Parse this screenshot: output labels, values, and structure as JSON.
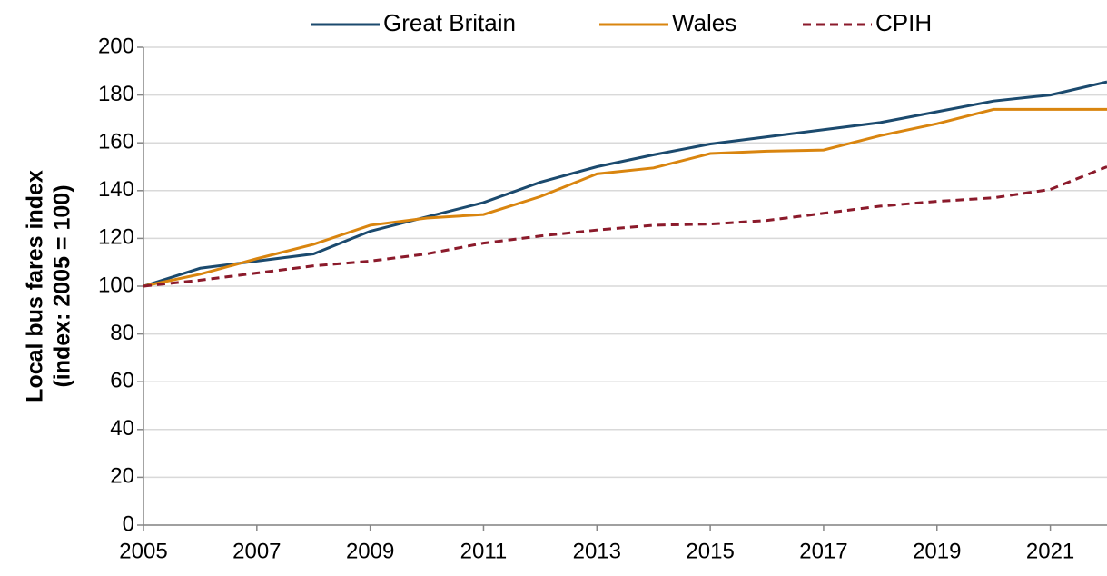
{
  "chart_data": {
    "type": "line",
    "y_label": [
      "Local bus fares index",
      "(index: 2005 = 100)"
    ],
    "x": [
      2005,
      2006,
      2007,
      2008,
      2009,
      2010,
      2011,
      2012,
      2013,
      2014,
      2015,
      2016,
      2017,
      2018,
      2019,
      2020,
      2021,
      2022
    ],
    "series": [
      {
        "name": "Great Britain",
        "color": "#1b4a6e",
        "dashed": false,
        "values": [
          100,
          107.5,
          110.5,
          113.5,
          123,
          129,
          135,
          143.5,
          150,
          155,
          159.5,
          162.5,
          165.5,
          168.5,
          173,
          177.5,
          180,
          185.5
        ]
      },
      {
        "name": "Wales",
        "color": "#d9850f",
        "dashed": false,
        "values": [
          100,
          105,
          111.5,
          117.5,
          125.5,
          128.5,
          130,
          137.5,
          147,
          149.5,
          155.5,
          156.5,
          157,
          163,
          168,
          174,
          174,
          174
        ]
      },
      {
        "name": "CPIH",
        "color": "#8b1a2b",
        "dashed": true,
        "values": [
          100,
          102.5,
          105.5,
          108.5,
          110.5,
          113.5,
          118,
          121,
          123.5,
          125.5,
          126,
          127.5,
          130.5,
          133.5,
          135.5,
          137,
          140.5,
          150
        ]
      }
    ],
    "xlim": [
      2005,
      2022
    ],
    "xticks": [
      2005,
      2007,
      2009,
      2011,
      2013,
      2015,
      2017,
      2019,
      2021
    ],
    "ylim": [
      0,
      200
    ],
    "yticks": [
      0,
      20,
      40,
      60,
      80,
      100,
      120,
      140,
      160,
      180,
      200
    ],
    "grid": true,
    "legend": "top"
  }
}
